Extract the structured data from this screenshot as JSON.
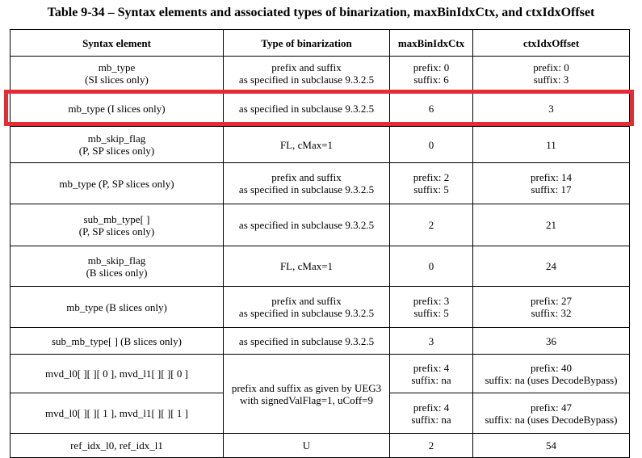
{
  "title": "Table 9-34 – Syntax elements and associated types of binarization, maxBinIdxCtx, and ctxIdxOffset",
  "headers": [
    "Syntax element",
    "Type of binarization",
    "maxBinIdxCtx",
    "ctxIdxOffset"
  ],
  "rows": [
    {
      "element": [
        "mb_type",
        "(SI slices only)"
      ],
      "binarization": [
        "prefix and suffix",
        "as specified in subclause 9.3.2.5"
      ],
      "max": [
        "prefix: 0",
        "suffix: 6"
      ],
      "offset": [
        "prefix: 0",
        "suffix: 3"
      ]
    },
    {
      "element": [
        "mb_type (I slices only)"
      ],
      "binarization": [
        "as specified in subclause 9.3.2.5"
      ],
      "max": [
        "6"
      ],
      "offset": [
        "3"
      ]
    },
    {
      "element": [
        "mb_skip_flag",
        "(P, SP slices only)"
      ],
      "binarization": [
        "FL, cMax=1"
      ],
      "max": [
        "0"
      ],
      "offset": [
        "11"
      ]
    },
    {
      "element": [
        "mb_type (P, SP slices only)"
      ],
      "binarization": [
        "prefix and suffix",
        "as specified in subclause 9.3.2.5"
      ],
      "max": [
        "prefix: 2",
        "suffix: 5"
      ],
      "offset": [
        "prefix: 14",
        "suffix: 17"
      ]
    },
    {
      "element": [
        "sub_mb_type[ ]",
        "(P, SP slices only)"
      ],
      "binarization": [
        "as specified in subclause 9.3.2.5"
      ],
      "max": [
        "2"
      ],
      "offset": [
        "21"
      ]
    },
    {
      "element": [
        "mb_skip_flag",
        "(B slices only)"
      ],
      "binarization": [
        "FL, cMax=1"
      ],
      "max": [
        "0"
      ],
      "offset": [
        "24"
      ]
    },
    {
      "element": [
        "mb_type (B slices only)"
      ],
      "binarization": [
        "prefix and suffix",
        "as specified in subclause 9.3.2.5"
      ],
      "max": [
        "prefix: 3",
        "suffix: 5"
      ],
      "offset": [
        "prefix: 27",
        "suffix: 32"
      ]
    },
    {
      "element": [
        "sub_mb_type[ ] (B slices only)"
      ],
      "binarization": [
        "as specified in subclause 9.3.2.5"
      ],
      "max": [
        "3"
      ],
      "offset": [
        "36"
      ]
    },
    {
      "element": [
        "mvd_l0[ ][ ][ 0 ], mvd_l1[ ][ ][ 0 ]"
      ],
      "binarization": [
        "prefix and suffix as given by UEG3",
        "with signedValFlag=1, uCoff=9"
      ],
      "max": [
        "prefix: 4",
        "suffix: na"
      ],
      "offset": [
        "prefix: 40",
        "suffix: na (uses DecodeBypass)"
      ]
    },
    {
      "element": [
        "mvd_l0[ ][ ][ 1 ], mvd_l1[ ][ ][ 1 ]"
      ],
      "max": [
        "prefix: 4",
        "suffix: na"
      ],
      "offset": [
        "prefix: 47",
        "suffix: na (uses DecodeBypass)"
      ]
    },
    {
      "element": [
        "ref_idx_l0, ref_idx_l1"
      ],
      "binarization": [
        "U"
      ],
      "max": [
        "2"
      ],
      "offset": [
        "54"
      ]
    }
  ],
  "highlight": {
    "row_index": 1,
    "color": "#e52b36"
  }
}
